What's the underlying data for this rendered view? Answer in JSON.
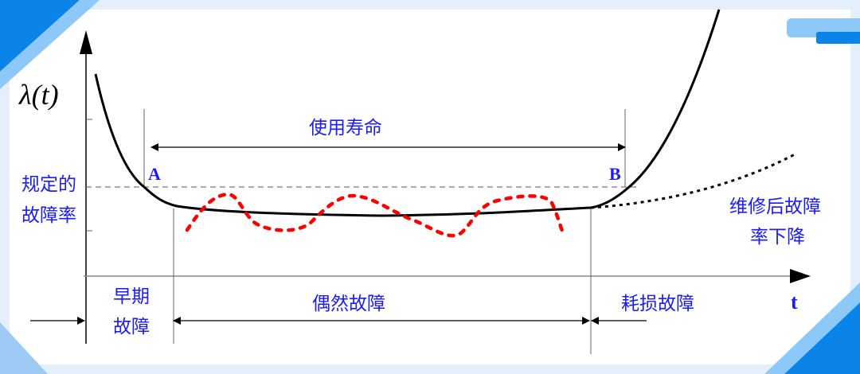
{
  "y_axis_label": "λ(t)",
  "x_axis_label": "t",
  "specified_rate_label": [
    "规定的",
    "故障率"
  ],
  "useful_life_label": "使用寿命",
  "point_a": "A",
  "point_b": "B",
  "early_failure_label": [
    "早期",
    "故障"
  ],
  "random_failure_label": "偶然故障",
  "wearout_failure_label": "耗损故障",
  "after_repair_label": [
    "维修后故障",
    "率下降"
  ],
  "colors": {
    "text_blue": "#1a1aff",
    "random_curve": "#ff0000",
    "curve": "#000000",
    "background": "#e3f0fc",
    "accent_blue": "#0a84e8"
  }
}
